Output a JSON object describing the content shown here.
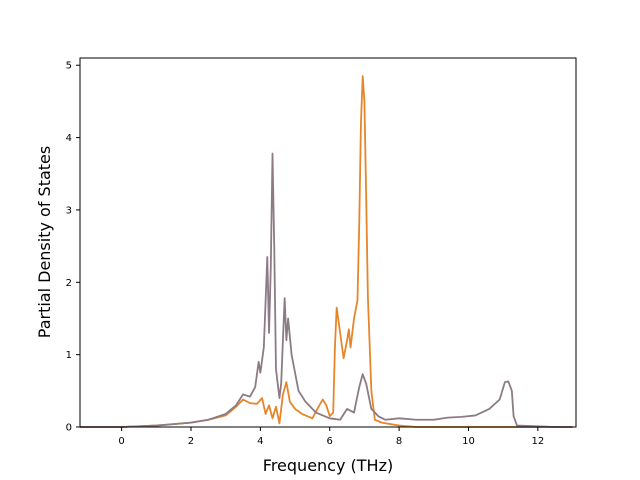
{
  "chart_data": {
    "type": "line",
    "xlabel": "Frequency (THz)",
    "ylabel": "Partial Density of States",
    "xlim": [
      -1.2,
      13.1
    ],
    "ylim": [
      0,
      5.1
    ],
    "xticks": [
      0,
      2,
      4,
      6,
      8,
      10,
      12
    ],
    "yticks": [
      0,
      1,
      2,
      3,
      4,
      5
    ],
    "grid": false,
    "legend": "none",
    "series": [
      {
        "color": "#e6862a",
        "points": [
          [
            -1.2,
            0
          ],
          [
            0.0,
            0.0
          ],
          [
            0.5,
            0.01
          ],
          [
            1.0,
            0.02
          ],
          [
            1.5,
            0.04
          ],
          [
            2.0,
            0.06
          ],
          [
            2.5,
            0.1
          ],
          [
            3.0,
            0.16
          ],
          [
            3.3,
            0.28
          ],
          [
            3.5,
            0.38
          ],
          [
            3.7,
            0.33
          ],
          [
            3.9,
            0.32
          ],
          [
            4.05,
            0.4
          ],
          [
            4.15,
            0.18
          ],
          [
            4.25,
            0.3
          ],
          [
            4.35,
            0.12
          ],
          [
            4.45,
            0.28
          ],
          [
            4.55,
            0.05
          ],
          [
            4.65,
            0.45
          ],
          [
            4.75,
            0.62
          ],
          [
            4.85,
            0.35
          ],
          [
            5.0,
            0.25
          ],
          [
            5.2,
            0.18
          ],
          [
            5.5,
            0.12
          ],
          [
            5.7,
            0.3
          ],
          [
            5.8,
            0.38
          ],
          [
            5.9,
            0.3
          ],
          [
            6.0,
            0.15
          ],
          [
            6.1,
            0.2
          ],
          [
            6.15,
            1.1
          ],
          [
            6.2,
            1.65
          ],
          [
            6.3,
            1.3
          ],
          [
            6.4,
            0.95
          ],
          [
            6.5,
            1.2
          ],
          [
            6.55,
            1.35
          ],
          [
            6.6,
            1.1
          ],
          [
            6.7,
            1.5
          ],
          [
            6.8,
            1.75
          ],
          [
            6.85,
            2.8
          ],
          [
            6.9,
            4.2
          ],
          [
            6.95,
            4.85
          ],
          [
            7.0,
            4.5
          ],
          [
            7.05,
            3.2
          ],
          [
            7.1,
            1.8
          ],
          [
            7.2,
            0.5
          ],
          [
            7.3,
            0.1
          ],
          [
            7.5,
            0.06
          ],
          [
            8.0,
            0.02
          ],
          [
            8.5,
            0.0
          ],
          [
            13.0,
            0.0
          ]
        ]
      },
      {
        "color": "#8c7b85",
        "points": [
          [
            -1.2,
            0
          ],
          [
            0.0,
            0.0
          ],
          [
            0.5,
            0.01
          ],
          [
            1.0,
            0.02
          ],
          [
            1.5,
            0.04
          ],
          [
            2.0,
            0.06
          ],
          [
            2.5,
            0.1
          ],
          [
            3.0,
            0.18
          ],
          [
            3.3,
            0.3
          ],
          [
            3.5,
            0.45
          ],
          [
            3.7,
            0.42
          ],
          [
            3.85,
            0.55
          ],
          [
            3.95,
            0.9
          ],
          [
            4.0,
            0.75
          ],
          [
            4.1,
            1.1
          ],
          [
            4.2,
            2.35
          ],
          [
            4.25,
            1.3
          ],
          [
            4.3,
            2.2
          ],
          [
            4.35,
            3.78
          ],
          [
            4.4,
            2.5
          ],
          [
            4.45,
            0.8
          ],
          [
            4.55,
            0.4
          ],
          [
            4.6,
            0.6
          ],
          [
            4.7,
            1.78
          ],
          [
            4.75,
            1.2
          ],
          [
            4.8,
            1.5
          ],
          [
            4.9,
            1.0
          ],
          [
            5.0,
            0.75
          ],
          [
            5.1,
            0.5
          ],
          [
            5.3,
            0.35
          ],
          [
            5.6,
            0.2
          ],
          [
            6.0,
            0.12
          ],
          [
            6.3,
            0.1
          ],
          [
            6.5,
            0.25
          ],
          [
            6.7,
            0.2
          ],
          [
            6.85,
            0.55
          ],
          [
            6.95,
            0.73
          ],
          [
            7.05,
            0.6
          ],
          [
            7.2,
            0.25
          ],
          [
            7.4,
            0.15
          ],
          [
            7.6,
            0.1
          ],
          [
            8.0,
            0.12
          ],
          [
            8.5,
            0.1
          ],
          [
            9.0,
            0.1
          ],
          [
            9.4,
            0.13
          ],
          [
            9.8,
            0.14
          ],
          [
            10.2,
            0.16
          ],
          [
            10.6,
            0.25
          ],
          [
            10.9,
            0.38
          ],
          [
            11.05,
            0.62
          ],
          [
            11.15,
            0.63
          ],
          [
            11.25,
            0.5
          ],
          [
            11.3,
            0.15
          ],
          [
            11.4,
            0.02
          ],
          [
            12.5,
            0.0
          ],
          [
            13.0,
            0.0
          ]
        ]
      }
    ]
  }
}
